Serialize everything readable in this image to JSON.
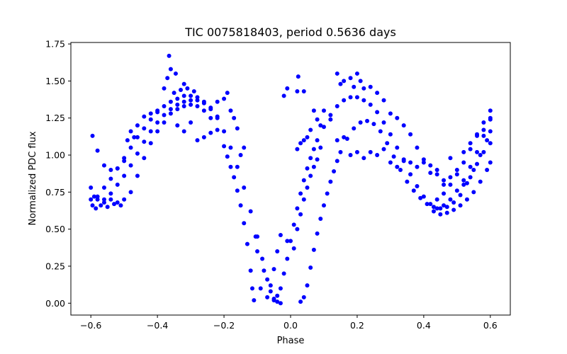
{
  "chart_data": {
    "type": "scatter",
    "title": "TIC 0075818403, period 0.5636 days",
    "xlabel": "Phase",
    "ylabel": "Normalized PDC flux",
    "xlim": [
      -0.66,
      0.66
    ],
    "ylim": [
      -0.08,
      1.76
    ],
    "grid": false,
    "legend": "none",
    "marker_color": "#0000ff",
    "x_ticks": [
      {
        "value": -0.6,
        "label": "−0.6"
      },
      {
        "value": -0.4,
        "label": "−0.4"
      },
      {
        "value": -0.2,
        "label": "−0.2"
      },
      {
        "value": 0.0,
        "label": "0.0"
      },
      {
        "value": 0.2,
        "label": "0.2"
      },
      {
        "value": 0.4,
        "label": "0.4"
      },
      {
        "value": 0.6,
        "label": "0.6"
      }
    ],
    "y_ticks": [
      {
        "value": 0.0,
        "label": "0.00"
      },
      {
        "value": 0.25,
        "label": "0.25"
      },
      {
        "value": 0.5,
        "label": "0.50"
      },
      {
        "value": 0.75,
        "label": "0.75"
      },
      {
        "value": 1.0,
        "label": "1.00"
      },
      {
        "value": 1.25,
        "label": "1.25"
      },
      {
        "value": 1.5,
        "label": "1.50"
      },
      {
        "value": 1.75,
        "label": "1.75"
      }
    ],
    "series": [
      {
        "values": [
          [
            -0.6,
            0.7
          ],
          [
            -0.595,
            0.66
          ],
          [
            -0.59,
            0.72
          ],
          [
            -0.585,
            0.64
          ],
          [
            -0.58,
            0.7
          ],
          [
            -0.57,
            0.66
          ],
          [
            -0.56,
            0.68
          ],
          [
            -0.55,
            0.65
          ],
          [
            -0.54,
            0.7
          ],
          [
            -0.53,
            0.67
          ],
          [
            -0.52,
            0.68
          ],
          [
            -0.51,
            0.66
          ],
          [
            -0.5,
            0.7
          ],
          [
            -0.48,
            0.75
          ],
          [
            -0.46,
            0.86
          ],
          [
            -0.44,
            0.98
          ],
          [
            -0.42,
            1.08
          ],
          [
            -0.4,
            1.16
          ],
          [
            -0.38,
            1.22
          ],
          [
            -0.36,
            1.28
          ],
          [
            -0.34,
            1.31
          ],
          [
            -0.32,
            1.33
          ],
          [
            -0.3,
            1.34
          ],
          [
            -0.28,
            1.33
          ],
          [
            -0.26,
            1.3
          ],
          [
            -0.24,
            1.25
          ],
          [
            -0.22,
            1.17
          ],
          [
            -0.2,
            1.06
          ],
          [
            -0.19,
            0.99
          ],
          [
            -0.18,
            0.92
          ],
          [
            -0.17,
            0.85
          ],
          [
            -0.16,
            0.76
          ],
          [
            -0.15,
            0.66
          ],
          [
            -0.14,
            0.54
          ],
          [
            -0.13,
            0.4
          ],
          [
            -0.12,
            0.22
          ],
          [
            -0.115,
            0.1
          ],
          [
            -0.11,
            0.02
          ],
          [
            -0.6,
            0.78
          ],
          [
            -0.58,
            0.72
          ],
          [
            -0.56,
            0.7
          ],
          [
            -0.54,
            0.74
          ],
          [
            -0.52,
            0.8
          ],
          [
            -0.5,
            0.86
          ],
          [
            -0.48,
            0.93
          ],
          [
            -0.46,
            1.01
          ],
          [
            -0.44,
            1.09
          ],
          [
            -0.42,
            1.16
          ],
          [
            -0.4,
            1.22
          ],
          [
            -0.38,
            1.27
          ],
          [
            -0.36,
            1.31
          ],
          [
            -0.34,
            1.34
          ],
          [
            -0.32,
            1.36
          ],
          [
            -0.3,
            1.37
          ],
          [
            -0.28,
            1.37
          ],
          [
            -0.26,
            1.35
          ],
          [
            -0.24,
            1.31
          ],
          [
            -0.22,
            1.25
          ],
          [
            -0.2,
            1.16
          ],
          [
            -0.18,
            1.05
          ],
          [
            -0.16,
            0.92
          ],
          [
            -0.14,
            0.78
          ],
          [
            -0.12,
            0.62
          ],
          [
            -0.1,
            0.45
          ],
          [
            -0.085,
            0.3
          ],
          [
            -0.07,
            0.16
          ],
          [
            -0.06,
            0.08
          ],
          [
            -0.05,
            0.03
          ],
          [
            -0.04,
            0.01
          ],
          [
            -0.03,
            0.0
          ],
          [
            -0.56,
            0.78
          ],
          [
            -0.54,
            0.84
          ],
          [
            -0.52,
            0.91
          ],
          [
            -0.5,
            0.98
          ],
          [
            -0.48,
            1.05
          ],
          [
            -0.46,
            1.12
          ],
          [
            -0.44,
            1.18
          ],
          [
            -0.42,
            1.24
          ],
          [
            -0.4,
            1.29
          ],
          [
            -0.38,
            1.33
          ],
          [
            -0.36,
            1.36
          ],
          [
            -0.34,
            1.38
          ],
          [
            -0.32,
            1.4
          ],
          [
            -0.3,
            1.4
          ],
          [
            -0.28,
            1.39
          ],
          [
            -0.26,
            1.36
          ],
          [
            -0.24,
            1.32
          ],
          [
            -0.22,
            1.26
          ],
          [
            -0.38,
            1.45
          ],
          [
            -0.35,
            1.42
          ],
          [
            -0.33,
            1.44
          ],
          [
            -0.31,
            1.45
          ],
          [
            -0.29,
            1.43
          ],
          [
            -0.37,
            1.52
          ],
          [
            -0.36,
            1.58
          ],
          [
            -0.345,
            1.55
          ],
          [
            -0.32,
            1.48
          ],
          [
            -0.365,
            1.67
          ],
          [
            -0.595,
            1.13
          ],
          [
            -0.58,
            1.03
          ],
          [
            -0.56,
            0.93
          ],
          [
            -0.54,
            0.9
          ],
          [
            -0.52,
            0.91
          ],
          [
            -0.5,
            0.96
          ],
          [
            -0.49,
            1.1
          ],
          [
            -0.48,
            1.16
          ],
          [
            -0.47,
            1.12
          ],
          [
            -0.46,
            1.2
          ],
          [
            -0.44,
            1.26
          ],
          [
            -0.42,
            1.28
          ],
          [
            -0.4,
            1.3
          ],
          [
            -0.34,
            1.2
          ],
          [
            -0.32,
            1.16
          ],
          [
            -0.3,
            1.22
          ],
          [
            -0.28,
            1.1
          ],
          [
            -0.26,
            1.12
          ],
          [
            -0.24,
            1.15
          ],
          [
            -0.22,
            1.36
          ],
          [
            -0.2,
            1.38
          ],
          [
            -0.19,
            1.42
          ],
          [
            -0.18,
            1.3
          ],
          [
            -0.17,
            1.25
          ],
          [
            -0.16,
            1.18
          ],
          [
            -0.15,
            1.0
          ],
          [
            -0.14,
            1.05
          ],
          [
            -0.05,
            0.02
          ],
          [
            -0.04,
            0.05
          ],
          [
            -0.03,
            0.1
          ],
          [
            -0.02,
            0.2
          ],
          [
            -0.01,
            0.3
          ],
          [
            0.0,
            0.42
          ],
          [
            0.01,
            0.53
          ],
          [
            0.02,
            0.64
          ],
          [
            0.03,
            0.74
          ],
          [
            0.04,
            0.83
          ],
          [
            0.05,
            0.91
          ],
          [
            0.06,
            0.98
          ],
          [
            0.07,
            1.04
          ],
          [
            0.08,
            1.1
          ],
          [
            0.1,
            1.19
          ],
          [
            0.12,
            1.27
          ],
          [
            0.14,
            1.33
          ],
          [
            0.16,
            1.37
          ],
          [
            0.18,
            1.39
          ],
          [
            0.2,
            1.39
          ],
          [
            0.22,
            1.37
          ],
          [
            0.24,
            1.34
          ],
          [
            0.26,
            1.29
          ],
          [
            0.28,
            1.22
          ],
          [
            0.3,
            1.14
          ],
          [
            0.32,
            1.05
          ],
          [
            0.34,
            0.96
          ],
          [
            0.36,
            0.87
          ],
          [
            0.38,
            0.79
          ],
          [
            0.4,
            0.72
          ],
          [
            0.42,
            0.67
          ],
          [
            0.44,
            0.64
          ],
          [
            0.03,
            0.01
          ],
          [
            0.04,
            0.04
          ],
          [
            0.05,
            0.12
          ],
          [
            0.06,
            0.24
          ],
          [
            0.07,
            0.36
          ],
          [
            0.08,
            0.47
          ],
          [
            0.09,
            0.57
          ],
          [
            0.1,
            0.66
          ],
          [
            0.11,
            0.74
          ],
          [
            0.12,
            0.82
          ],
          [
            0.13,
            0.89
          ],
          [
            0.14,
            0.96
          ],
          [
            0.15,
            1.02
          ],
          [
            0.17,
            1.11
          ],
          [
            0.19,
            1.18
          ],
          [
            0.21,
            1.22
          ],
          [
            0.23,
            1.23
          ],
          [
            0.25,
            1.21
          ],
          [
            0.27,
            1.16
          ],
          [
            0.29,
            1.08
          ],
          [
            0.31,
            0.99
          ],
          [
            0.33,
            0.9
          ],
          [
            0.35,
            0.82
          ],
          [
            0.37,
            0.76
          ],
          [
            0.39,
            0.71
          ],
          [
            0.41,
            0.67
          ],
          [
            0.43,
            0.65
          ],
          [
            0.45,
            0.64
          ],
          [
            0.47,
            0.65
          ],
          [
            0.49,
            0.68
          ],
          [
            0.51,
            0.73
          ],
          [
            0.53,
            0.81
          ],
          [
            0.55,
            0.9
          ],
          [
            0.57,
            1.0
          ],
          [
            0.59,
            1.1
          ],
          [
            0.6,
            1.16
          ],
          [
            0.46,
            0.66
          ],
          [
            0.48,
            0.7
          ],
          [
            0.5,
            0.76
          ],
          [
            0.52,
            0.83
          ],
          [
            0.54,
            0.92
          ],
          [
            0.56,
            1.02
          ],
          [
            0.58,
            1.13
          ],
          [
            0.6,
            1.24
          ],
          [
            0.44,
            0.7
          ],
          [
            0.46,
            0.74
          ],
          [
            0.48,
            0.8
          ],
          [
            0.5,
            0.87
          ],
          [
            0.52,
            0.95
          ],
          [
            0.54,
            1.04
          ],
          [
            0.56,
            1.14
          ],
          [
            0.58,
            1.22
          ],
          [
            0.6,
            1.3
          ],
          [
            0.43,
            0.62
          ],
          [
            0.45,
            0.6
          ],
          [
            0.47,
            0.61
          ],
          [
            0.49,
            0.63
          ],
          [
            0.51,
            0.66
          ],
          [
            0.53,
            0.7
          ],
          [
            0.55,
            0.75
          ],
          [
            0.57,
            0.82
          ],
          [
            0.59,
            0.9
          ],
          [
            0.6,
            0.95
          ],
          [
            0.14,
            1.55
          ],
          [
            0.16,
            1.5
          ],
          [
            0.18,
            1.52
          ],
          [
            0.2,
            1.55
          ],
          [
            0.21,
            1.5
          ],
          [
            0.22,
            1.45
          ],
          [
            0.15,
            1.48
          ],
          [
            0.19,
            1.46
          ],
          [
            0.24,
            1.46
          ],
          [
            0.26,
            1.42
          ],
          [
            0.28,
            1.37
          ],
          [
            0.3,
            1.28
          ],
          [
            0.32,
            1.25
          ],
          [
            0.34,
            1.2
          ],
          [
            0.36,
            1.14
          ],
          [
            0.38,
            1.05
          ],
          [
            0.4,
            0.97
          ],
          [
            0.42,
            0.93
          ],
          [
            0.44,
            0.87
          ],
          [
            0.46,
            0.8
          ],
          [
            0.48,
            0.85
          ],
          [
            0.5,
            0.9
          ],
          [
            0.52,
            1.02
          ],
          [
            0.54,
            1.08
          ],
          [
            0.56,
            1.13
          ],
          [
            0.58,
            1.17
          ],
          [
            0.6,
            1.25
          ],
          [
            0.1,
            1.3
          ],
          [
            0.12,
            1.24
          ],
          [
            0.14,
            1.1
          ],
          [
            0.16,
            1.12
          ],
          [
            0.18,
            1.0
          ],
          [
            0.2,
            1.02
          ],
          [
            0.22,
            0.98
          ],
          [
            0.24,
            1.02
          ],
          [
            0.26,
            1.0
          ],
          [
            0.28,
            1.04
          ],
          [
            0.3,
            0.95
          ],
          [
            0.32,
            0.92
          ],
          [
            0.34,
            0.97
          ],
          [
            0.36,
            0.95
          ],
          [
            0.38,
            0.92
          ],
          [
            0.4,
            0.95
          ],
          [
            0.42,
            0.88
          ],
          [
            0.44,
            0.9
          ],
          [
            0.46,
            0.83
          ],
          [
            0.48,
            0.98
          ],
          [
            0.52,
            0.8
          ],
          [
            0.54,
            0.85
          ],
          [
            0.56,
            0.94
          ],
          [
            0.58,
            1.02
          ],
          [
            0.6,
            1.08
          ],
          [
            -0.01,
            0.42
          ],
          [
            0.01,
            0.37
          ],
          [
            0.02,
            0.5
          ],
          [
            0.03,
            0.6
          ],
          [
            0.04,
            0.7
          ],
          [
            0.05,
            0.78
          ],
          [
            0.06,
            0.86
          ],
          [
            0.07,
            0.92
          ],
          [
            0.08,
            0.97
          ],
          [
            0.09,
            1.05
          ],
          [
            0.07,
            1.3
          ],
          [
            0.08,
            1.24
          ],
          [
            0.09,
            1.2
          ],
          [
            0.06,
            1.17
          ],
          [
            0.05,
            1.12
          ],
          [
            0.04,
            1.1
          ],
          [
            0.03,
            1.08
          ],
          [
            0.02,
            1.04
          ],
          [
            0.023,
            1.53
          ],
          [
            0.02,
            1.43
          ],
          [
            -0.01,
            1.45
          ],
          [
            -0.02,
            1.4
          ],
          [
            0.04,
            1.43
          ],
          [
            -0.07,
            0.04
          ],
          [
            -0.06,
            0.12
          ],
          [
            -0.05,
            0.23
          ],
          [
            -0.04,
            0.35
          ],
          [
            -0.03,
            0.46
          ],
          [
            -0.09,
            0.1
          ],
          [
            -0.08,
            0.22
          ],
          [
            -0.1,
            0.35
          ],
          [
            -0.105,
            0.45
          ]
        ]
      }
    ]
  }
}
